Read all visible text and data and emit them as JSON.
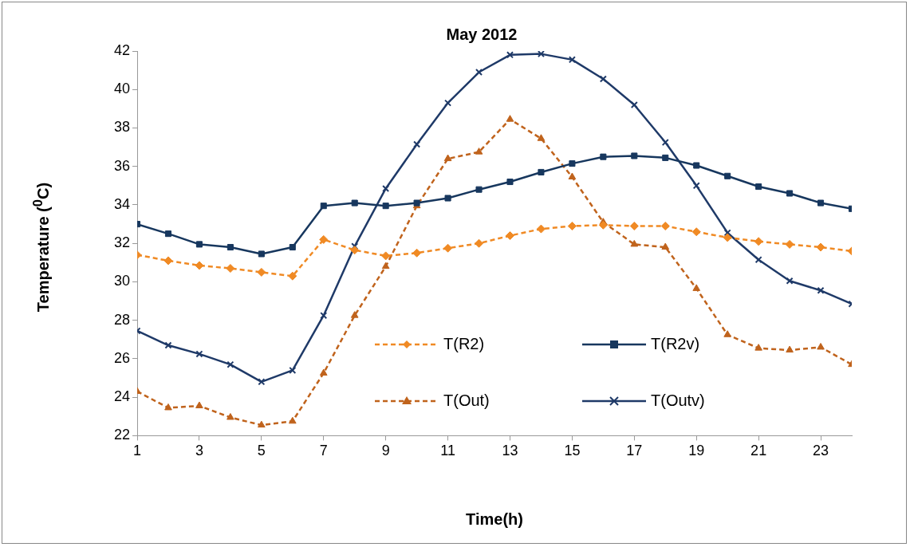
{
  "chart_data": {
    "type": "line",
    "title": "May 2012",
    "xlabel": "Time(h)",
    "ylabel": "Temperature ($^{0}$C)",
    "x": [
      1,
      2,
      3,
      4,
      5,
      6,
      7,
      8,
      9,
      10,
      11,
      12,
      13,
      14,
      15,
      16,
      17,
      18,
      19,
      20,
      21,
      22,
      23,
      24
    ],
    "xlim": [
      1,
      24
    ],
    "xticks": [
      1,
      3,
      5,
      7,
      9,
      11,
      13,
      15,
      17,
      19,
      21,
      23
    ],
    "ylim": [
      22,
      42
    ],
    "yticks": [
      22,
      24,
      26,
      28,
      30,
      32,
      34,
      36,
      38,
      40,
      42
    ],
    "grid": false,
    "legend": "bottom",
    "series": [
      {
        "name": "T(R2)",
        "color": "#f08a24",
        "marker": "diamond",
        "line_style": "dashed",
        "values": [
          31.4,
          31.1,
          30.85,
          30.7,
          30.5,
          30.3,
          32.2,
          31.65,
          31.35,
          31.5,
          31.75,
          32.0,
          32.4,
          32.75,
          32.9,
          32.95,
          32.9,
          32.9,
          32.6,
          32.3,
          32.1,
          31.95,
          31.8,
          31.6
        ]
      },
      {
        "name": "T(R2v)",
        "color": "#17375e",
        "marker": "square",
        "line_style": "solid",
        "values": [
          33.0,
          32.5,
          31.95,
          31.8,
          31.45,
          31.8,
          33.95,
          34.1,
          33.95,
          34.1,
          34.35,
          34.8,
          35.2,
          35.7,
          36.15,
          36.5,
          36.55,
          36.45,
          36.05,
          35.5,
          34.95,
          34.6,
          34.1,
          33.8
        ]
      },
      {
        "name": "T(Out)",
        "color": "#c0631c",
        "marker": "triangle",
        "line_style": "dashed",
        "values": [
          24.3,
          23.45,
          23.55,
          22.95,
          22.55,
          22.75,
          25.25,
          28.25,
          30.8,
          33.95,
          36.4,
          36.75,
          38.45,
          37.45,
          35.45,
          33.1,
          31.95,
          31.8,
          29.65,
          27.25,
          26.55,
          26.45,
          26.6,
          25.7
        ]
      },
      {
        "name": "T(Outv)",
        "color": "#1f3a68",
        "marker": "cross",
        "line_style": "solid",
        "values": [
          27.45,
          26.7,
          26.25,
          25.7,
          24.8,
          25.4,
          28.25,
          31.85,
          34.85,
          37.15,
          39.3,
          40.9,
          41.8,
          41.85,
          41.55,
          40.55,
          39.2,
          37.25,
          35.0,
          32.55,
          31.15,
          30.05,
          29.55,
          28.85
        ]
      }
    ]
  }
}
